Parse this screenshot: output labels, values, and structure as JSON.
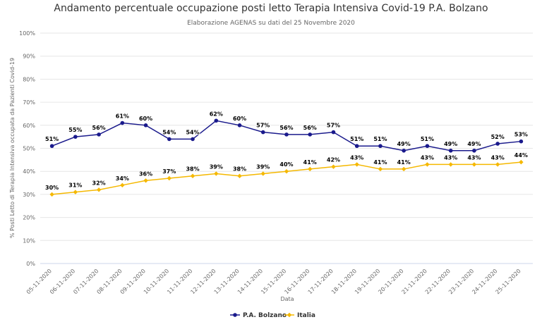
{
  "chart_data": {
    "type": "line",
    "title": "Andamento percentuale occupazione posti letto Terapia Intensiva Covid-19 P.A. Bolzano",
    "subtitle": "Elaborazione AGENAS su dati del 25 Novembre 2020",
    "xlabel": "Data",
    "ylabel": "% Posti Letto di Terapia Intensiva occupata da Pazienti Covid-19",
    "ylim": [
      0,
      100
    ],
    "yticks": [
      "0%",
      "10%",
      "20%",
      "30%",
      "40%",
      "50%",
      "60%",
      "70%",
      "80%",
      "90%",
      "100%"
    ],
    "grid": true,
    "legend_position": "bottom-center",
    "categories": [
      "05-11-2020",
      "06-11-2020",
      "07-11-2020",
      "08-11-2020",
      "09-11-2020",
      "10-11-2020",
      "11-11-2020",
      "12-11-2020",
      "13-11-2020",
      "14-11-2020",
      "15-11-2020",
      "16-11-2020",
      "17-11-2020",
      "18-11-2020",
      "19-11-2020",
      "20-11-2020",
      "21-11-2020",
      "22-11-2020",
      "23-11-2020",
      "24-11-2020",
      "25-11-2020"
    ],
    "series": [
      {
        "name": "P.A. Bolzano",
        "color": "#1a1a8c",
        "values": [
          51,
          55,
          56,
          61,
          60,
          54,
          54,
          62,
          60,
          57,
          56,
          56,
          57,
          51,
          51,
          49,
          51,
          49,
          49,
          52,
          53
        ],
        "labels": [
          "51%",
          "55%",
          "56%",
          "61%",
          "60%",
          "54%",
          "54%",
          "62%",
          "60%",
          "57%",
          "56%",
          "56%",
          "57%",
          "51%",
          "51%",
          "49%",
          "51%",
          "49%",
          "49%",
          "52%",
          "53%"
        ]
      },
      {
        "name": "Italia",
        "color": "#f5b800",
        "values": [
          30,
          31,
          32,
          34,
          36,
          37,
          38,
          39,
          38,
          39,
          40,
          41,
          42,
          43,
          41,
          41,
          43,
          43,
          43,
          43,
          44
        ],
        "labels": [
          "30%",
          "31%",
          "32%",
          "34%",
          "36%",
          "37%",
          "38%",
          "39%",
          "38%",
          "39%",
          "40%",
          "41%",
          "42%",
          "43%",
          "41%",
          "41%",
          "43%",
          "43%",
          "43%",
          "43%",
          "44%"
        ]
      }
    ]
  }
}
